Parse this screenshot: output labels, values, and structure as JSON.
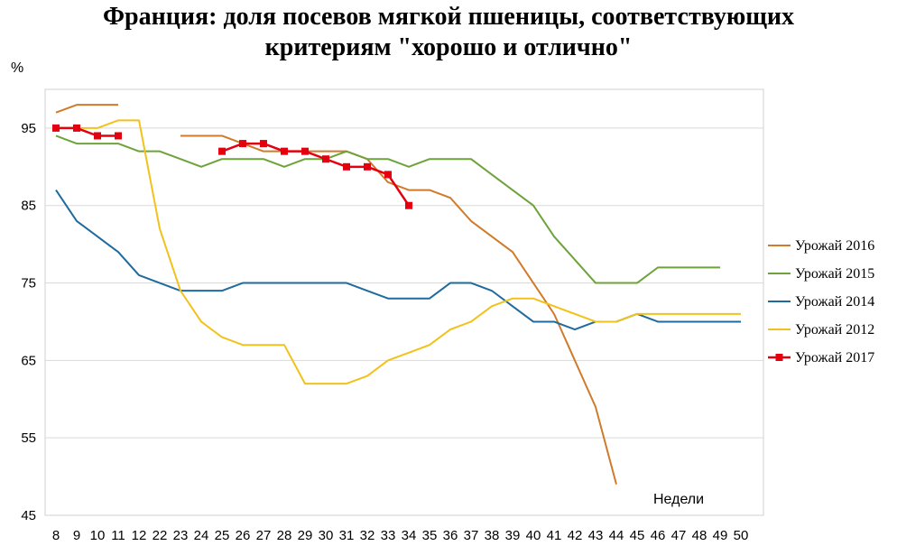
{
  "chart_data": {
    "type": "line",
    "title_line1": "Франция: доля посевов мягкой пшеницы, соответствующих",
    "title_line2": "критериям \"хорошо и отлично\"",
    "ylabel": "%",
    "xlabel": "Недели",
    "ylim": [
      45,
      100
    ],
    "yticks": [
      45,
      55,
      65,
      75,
      85,
      95
    ],
    "categories": [
      "8",
      "9",
      "10",
      "11",
      "12",
      "22",
      "23",
      "24",
      "25",
      "26",
      "27",
      "28",
      "29",
      "30",
      "31",
      "32",
      "33",
      "34",
      "35",
      "36",
      "37",
      "38",
      "39",
      "40",
      "41",
      "42",
      "43",
      "44",
      "45",
      "46",
      "47",
      "48",
      "49",
      "50"
    ],
    "legend_position": "right",
    "series": [
      {
        "name": "Урожай 2016",
        "color": "#D07A2A",
        "marker": false,
        "values": [
          97,
          98,
          98,
          98,
          null,
          null,
          94,
          94,
          94,
          93,
          92,
          92,
          92,
          92,
          92,
          91,
          88,
          87,
          87,
          86,
          83,
          81,
          79,
          75,
          71,
          65,
          59,
          49,
          null,
          null,
          null,
          null,
          null,
          null
        ]
      },
      {
        "name": "Урожай 2015",
        "color": "#6EA23A",
        "marker": false,
        "values": [
          94,
          93,
          93,
          93,
          92,
          92,
          91,
          90,
          91,
          91,
          91,
          90,
          91,
          91,
          92,
          91,
          91,
          90,
          91,
          91,
          91,
          89,
          87,
          85,
          81,
          78,
          75,
          75,
          75,
          77,
          77,
          77,
          77,
          null
        ]
      },
      {
        "name": "Урожай 2014",
        "color": "#1F6A9E",
        "marker": false,
        "values": [
          87,
          83,
          81,
          79,
          76,
          75,
          74,
          74,
          74,
          75,
          75,
          75,
          75,
          75,
          75,
          74,
          73,
          73,
          73,
          75,
          75,
          74,
          72,
          70,
          70,
          69,
          70,
          70,
          71,
          70,
          70,
          70,
          70,
          70
        ]
      },
      {
        "name": "Урожай 2012",
        "color": "#F2C21B",
        "marker": false,
        "values": [
          95,
          95,
          95,
          96,
          96,
          82,
          74,
          70,
          68,
          67,
          67,
          67,
          62,
          62,
          62,
          63,
          65,
          66,
          67,
          69,
          70,
          72,
          73,
          73,
          72,
          71,
          70,
          70,
          71,
          71,
          71,
          71,
          71,
          71
        ]
      },
      {
        "name": "Урожай 2017",
        "color": "#E3000F",
        "marker": true,
        "values": [
          95,
          95,
          94,
          94,
          null,
          null,
          null,
          null,
          92,
          93,
          93,
          92,
          92,
          91,
          90,
          90,
          89,
          85,
          null,
          null,
          null,
          null,
          null,
          null,
          null,
          null,
          null,
          null,
          null,
          null,
          null,
          null,
          null,
          null
        ]
      }
    ]
  }
}
